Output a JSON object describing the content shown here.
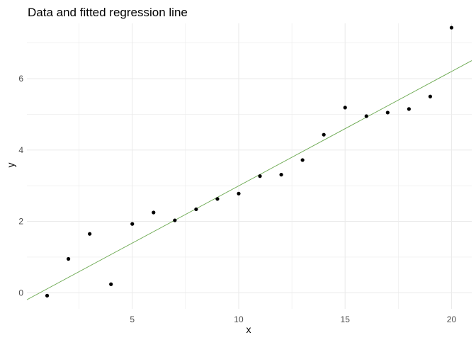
{
  "chart_data": {
    "type": "scatter",
    "title": "Data and fitted regression line",
    "xlabel": "x",
    "ylabel": "y",
    "xlim": [
      0.05,
      20.95
    ],
    "ylim": [
      -0.45,
      7.55
    ],
    "x_ticks": [
      5,
      10,
      15,
      20
    ],
    "y_ticks": [
      0,
      2,
      4,
      6
    ],
    "x_minor_ticks": [
      2.5,
      7.5,
      12.5,
      17.5
    ],
    "y_minor_ticks": [
      1,
      3,
      5,
      7
    ],
    "grid": true,
    "legend": "none",
    "points": [
      {
        "x": 1,
        "y": -0.08
      },
      {
        "x": 2,
        "y": 0.95
      },
      {
        "x": 3,
        "y": 1.65
      },
      {
        "x": 4,
        "y": 0.24
      },
      {
        "x": 5,
        "y": 1.93
      },
      {
        "x": 6,
        "y": 2.25
      },
      {
        "x": 7,
        "y": 2.03
      },
      {
        "x": 8,
        "y": 2.34
      },
      {
        "x": 9,
        "y": 2.63
      },
      {
        "x": 10,
        "y": 2.78
      },
      {
        "x": 11,
        "y": 3.27
      },
      {
        "x": 12,
        "y": 3.31
      },
      {
        "x": 13,
        "y": 3.72
      },
      {
        "x": 14,
        "y": 4.43
      },
      {
        "x": 15,
        "y": 5.19
      },
      {
        "x": 16,
        "y": 4.95
      },
      {
        "x": 17,
        "y": 5.05
      },
      {
        "x": 18,
        "y": 5.15
      },
      {
        "x": 19,
        "y": 5.5
      },
      {
        "x": 20,
        "y": 7.43
      }
    ],
    "fit_line": {
      "intercept": -0.21,
      "slope": 0.3206
    },
    "colors": {
      "points": "#000000",
      "fit_line": "#6aa84f",
      "grid": "#ebebeb"
    }
  }
}
